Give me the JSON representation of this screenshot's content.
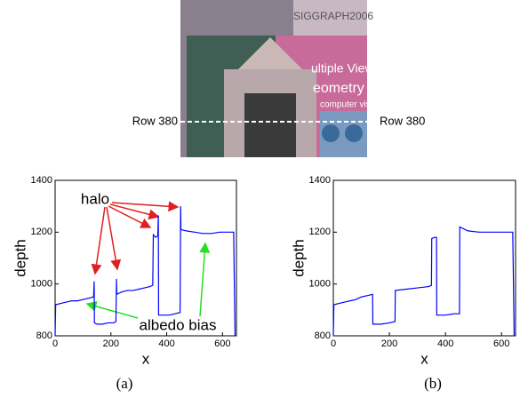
{
  "photo": {
    "texts": [
      "SIGGRAPH2006",
      "ultiple View",
      "eometry",
      "computer vision"
    ],
    "row_labels": [
      "Row 380",
      "Row 380"
    ]
  },
  "captions": [
    "(a)",
    "(b)"
  ],
  "chart_data": [
    {
      "type": "line",
      "xlabel": "x",
      "ylabel": "depth",
      "annotations": [
        "halo",
        "albedo bias"
      ],
      "xlim": [
        0,
        650
      ],
      "ylim": [
        800,
        1400
      ],
      "xticks": [
        0,
        200,
        400,
        600
      ],
      "yticks": [
        800,
        1000,
        1200,
        1400
      ],
      "series": [
        {
          "color": "#0000ff",
          "x": [
            0,
            2,
            20,
            40,
            60,
            80,
            100,
            120,
            138,
            140,
            141,
            150,
            170,
            190,
            210,
            218,
            220,
            221,
            240,
            260,
            280,
            300,
            320,
            340,
            350,
            352,
            360,
            368,
            370,
            371,
            390,
            410,
            430,
            448,
            450,
            451,
            470,
            500,
            530,
            560,
            590,
            620,
            640,
            645
          ],
          "values": [
            800,
            920,
            925,
            930,
            935,
            935,
            940,
            945,
            950,
            1010,
            850,
            845,
            845,
            850,
            850,
            855,
            1020,
            960,
            970,
            975,
            975,
            980,
            985,
            990,
            995,
            1190,
            1180,
            1185,
            1265,
            880,
            880,
            880,
            885,
            890,
            1300,
            1210,
            1205,
            1200,
            1195,
            1195,
            1200,
            1200,
            1200,
            800
          ]
        }
      ]
    },
    {
      "type": "line",
      "xlabel": "x",
      "ylabel": "depth",
      "xlim": [
        0,
        650
      ],
      "ylim": [
        800,
        1400
      ],
      "xticks": [
        0,
        200,
        400,
        600
      ],
      "yticks": [
        800,
        1000,
        1200,
        1400
      ],
      "series": [
        {
          "color": "#0000ff",
          "x": [
            0,
            2,
            20,
            40,
            60,
            80,
            100,
            120,
            140,
            141,
            170,
            200,
            220,
            221,
            260,
            300,
            340,
            350,
            351,
            360,
            368,
            369,
            400,
            430,
            450,
            451,
            480,
            520,
            560,
            600,
            640,
            645
          ],
          "values": [
            800,
            920,
            925,
            930,
            935,
            940,
            950,
            955,
            960,
            845,
            845,
            850,
            855,
            975,
            980,
            985,
            990,
            995,
            1175,
            1180,
            1180,
            880,
            880,
            885,
            885,
            1220,
            1205,
            1200,
            1200,
            1200,
            1200,
            800
          ]
        }
      ]
    }
  ]
}
